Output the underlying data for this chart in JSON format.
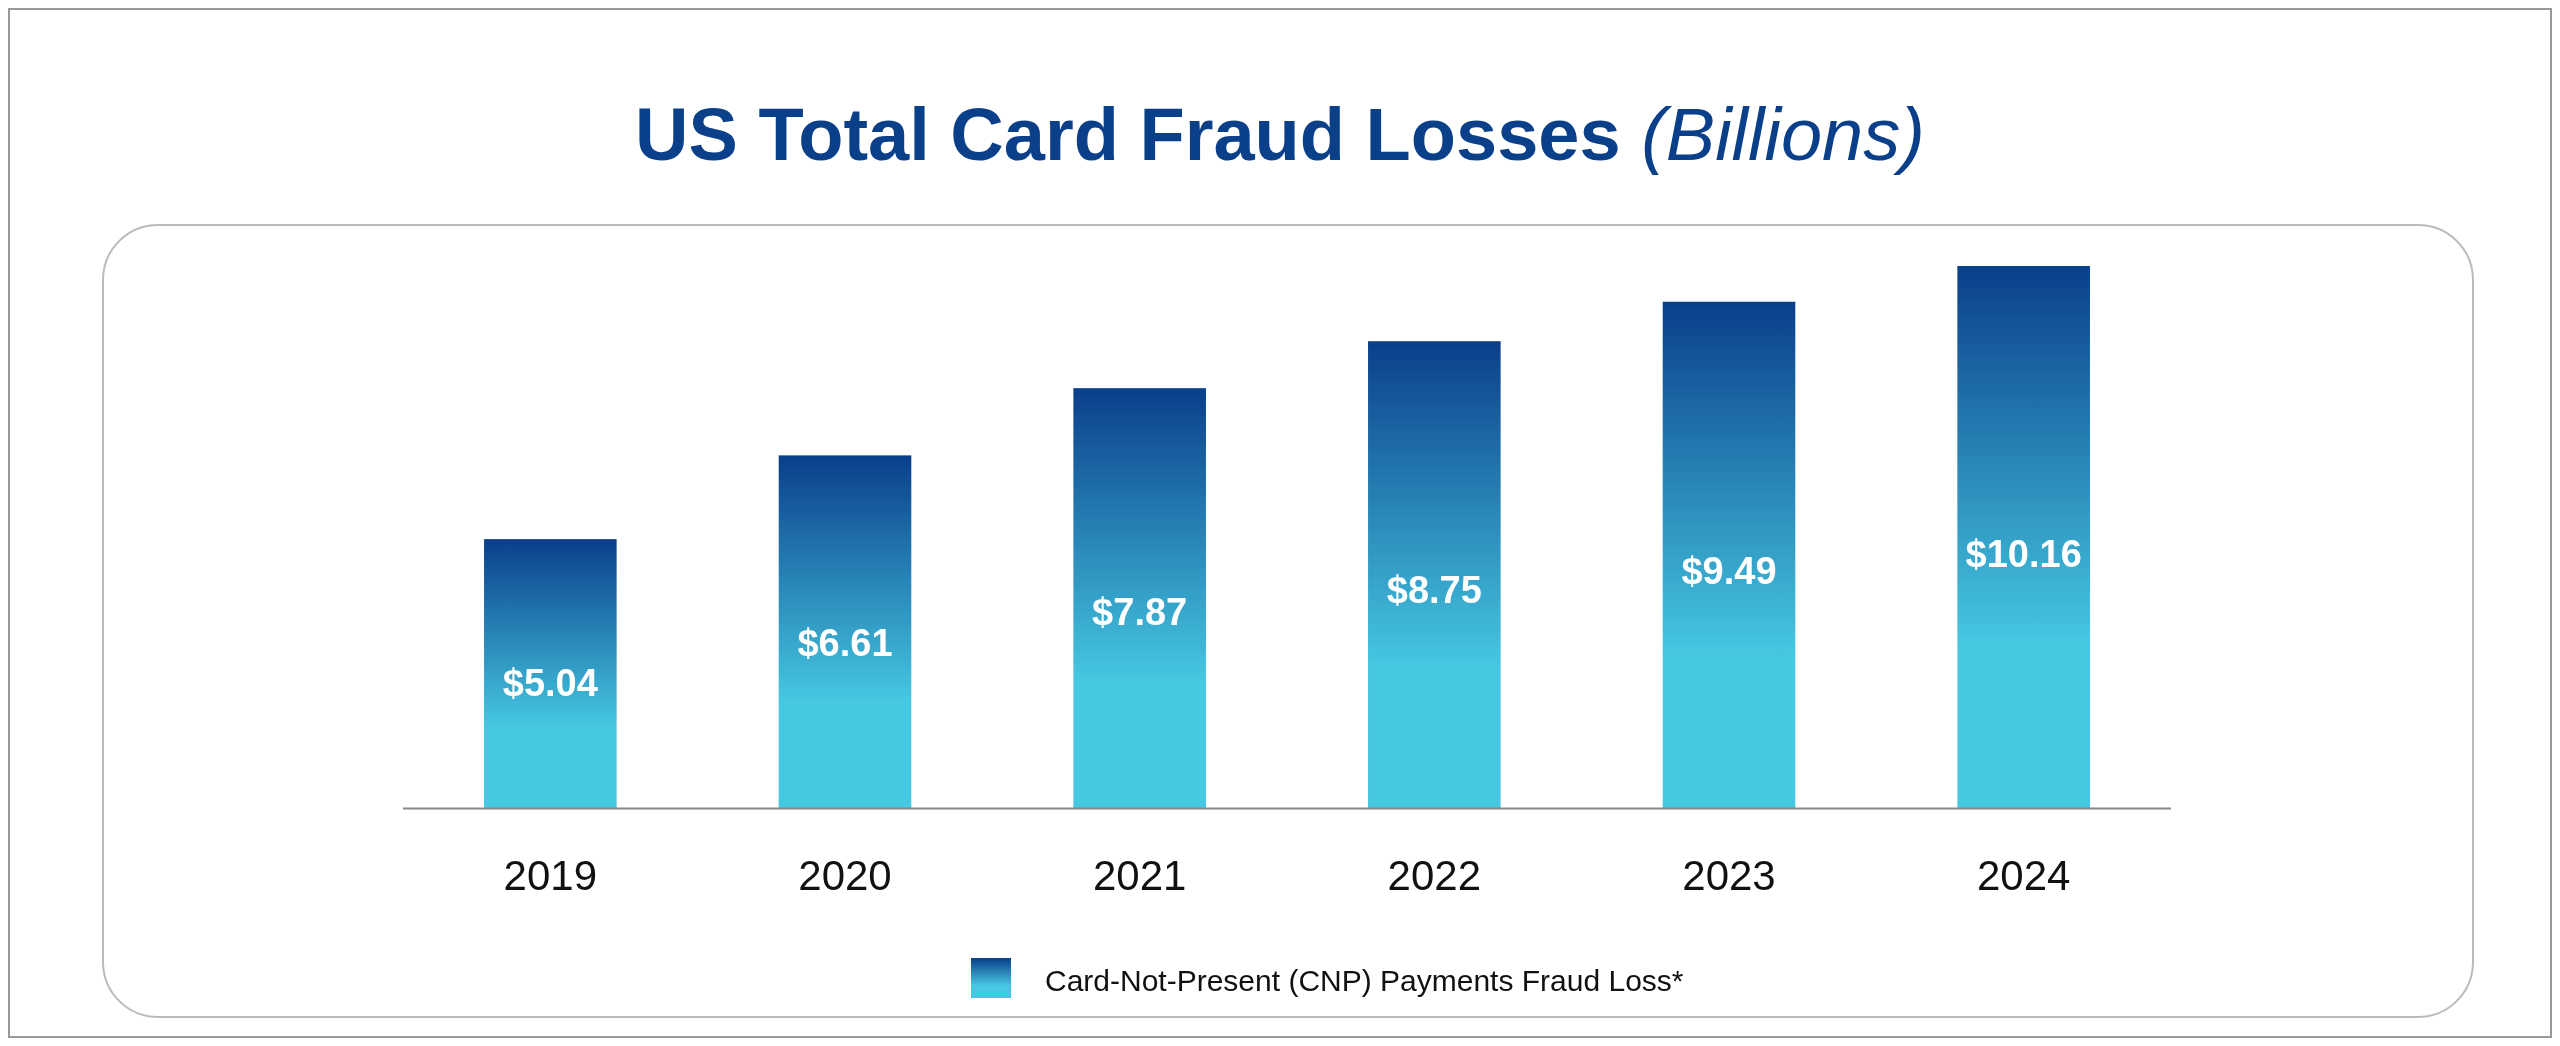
{
  "chart_data": {
    "type": "bar",
    "title": "US Total Card Fraud Losses (Billions)",
    "categories": [
      "2019",
      "2020",
      "2021",
      "2022",
      "2023",
      "2024"
    ],
    "series": [
      {
        "name": "Card-Not-Present (CNP) Payments Fraud Loss*",
        "color": "#0a3f8a",
        "values": [
          5.04,
          6.61,
          7.87,
          8.75,
          9.49,
          10.16
        ],
        "value_labels": [
          "$5.04",
          "$6.61",
          "$7.87",
          "$8.75",
          "$9.49",
          "$10.16"
        ]
      }
    ],
    "legend": "bottom"
  }
}
